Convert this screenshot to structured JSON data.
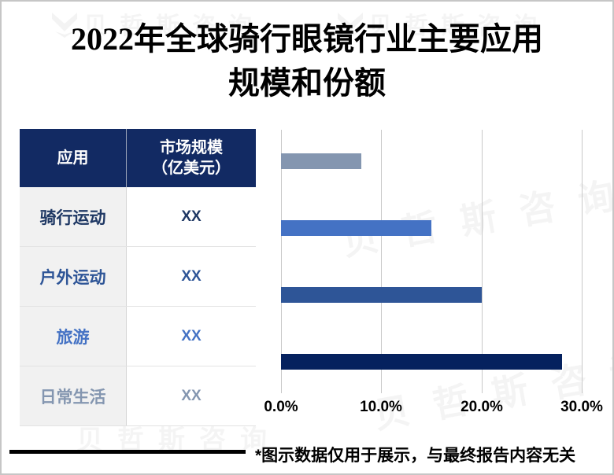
{
  "title": {
    "line1": "2022年全球骑行眼镜行业主要应用",
    "line2": "规模和份额"
  },
  "table": {
    "headers": {
      "col1": "应用",
      "col2_line1": "市场规模",
      "col2_line2": "（亿美元）"
    },
    "rows": [
      {
        "label": "骑行运动",
        "value": "XX",
        "color": "#1F3864"
      },
      {
        "label": "户外运动",
        "value": "XX",
        "color": "#2E5597"
      },
      {
        "label": "旅游",
        "value": "XX",
        "color": "#4472C4"
      },
      {
        "label": "日常生活",
        "value": "XX",
        "color": "#8496B0"
      }
    ]
  },
  "chart_data": {
    "type": "bar",
    "orientation": "horizontal",
    "title": "",
    "categories": [
      "骑行运动",
      "户外运动",
      "旅游",
      "日常生活"
    ],
    "values_percent": [
      28,
      20,
      15,
      8
    ],
    "bar_colors": [
      "#05215E",
      "#2E5597",
      "#4472C4",
      "#8496B0"
    ],
    "display_order_top_to_bottom": [
      "日常生活",
      "旅游",
      "户外运动",
      "骑行运动"
    ],
    "x_ticks": [
      {
        "label": "0.0%",
        "value": 0
      },
      {
        "label": "10.0%",
        "value": 10
      },
      {
        "label": "20.0%",
        "value": 20
      },
      {
        "label": "30.0%",
        "value": 30
      }
    ],
    "xlim": [
      0,
      30
    ],
    "grid": "vertical-only",
    "legend": "none"
  },
  "footer": {
    "note": "*图示数据仅用于展示，与最终报告内容无关"
  },
  "watermark": {
    "text": "贝哲斯咨询"
  },
  "colors": {
    "table_header_bg": "#122A63",
    "gridline": "#C9C9C9",
    "row_label_bg": "#F1F1F1"
  }
}
